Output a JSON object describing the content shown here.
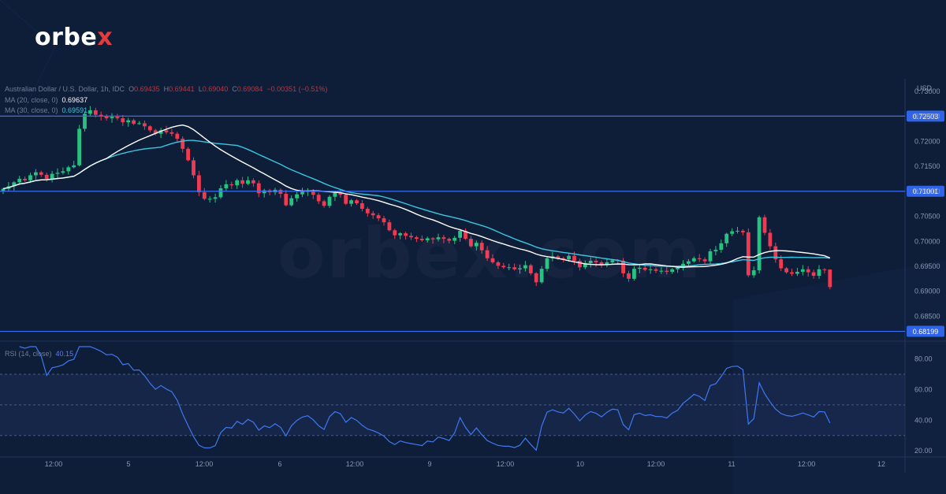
{
  "brand": {
    "logo_text": "orbe",
    "logo_x": "x"
  },
  "watermark": "orbex.com",
  "legend": {
    "symbol": "Australian Dollar / U.S. Dollar, 1h, IDC",
    "o_label": "O",
    "o": "0.69435",
    "h_label": "H",
    "h": "0.69441",
    "l_label": "L",
    "l": "0.69040",
    "c_label": "C",
    "c": "0.69084",
    "change": "−0.00351 (−0.51%)",
    "ma20_label": "MA (20, close, 0)",
    "ma20_value": "0.69637",
    "ma30_label": "MA (30, close, 0)",
    "ma30_value": "0.69591",
    "rsi_label": "RSI (14, close)",
    "rsi_value": "40.15"
  },
  "colors": {
    "background": "#0e1d38",
    "up": "#26c281",
    "down": "#ee3b52",
    "ma20": "#ffffff",
    "ma30": "#38c7e0",
    "rsi": "#3f78f0",
    "level": "#3a6ef5"
  },
  "chart_data": [
    {
      "type": "candlestick",
      "currency_label": "USD",
      "ylim": [
        0.6805,
        0.7325
      ],
      "y_ticks": [
        "0.73000",
        "0.72500",
        "0.72000",
        "0.71500",
        "0.71000",
        "0.70500",
        "0.70000",
        "0.69500",
        "0.69000",
        "0.68500"
      ],
      "x_ticks": [
        "12:00",
        "5",
        "12:00",
        "6",
        "12:00",
        "9",
        "12:00",
        "10",
        "12:00",
        "11",
        "12:00",
        "12"
      ],
      "levels": [
        {
          "value": 0.72503,
          "label": "0.72503"
        },
        {
          "value": 0.71001,
          "label": "0.71001"
        },
        {
          "value": 0.68199,
          "label": "0.68199"
        }
      ],
      "closes": [
        0.7105,
        0.711,
        0.7118,
        0.7125,
        0.7122,
        0.7132,
        0.7138,
        0.7133,
        0.7125,
        0.7135,
        0.7137,
        0.714,
        0.7148,
        0.7152,
        0.7225,
        0.7255,
        0.7262,
        0.7253,
        0.725,
        0.7246,
        0.7249,
        0.7246,
        0.7238,
        0.7242,
        0.7235,
        0.7236,
        0.723,
        0.7222,
        0.7215,
        0.7222,
        0.7218,
        0.7215,
        0.7205,
        0.7185,
        0.7162,
        0.7132,
        0.7098,
        0.7085,
        0.7085,
        0.7088,
        0.7106,
        0.7114,
        0.7112,
        0.7122,
        0.7115,
        0.7122,
        0.7116,
        0.7096,
        0.7102,
        0.7098,
        0.7103,
        0.7095,
        0.7072,
        0.7086,
        0.7094,
        0.7099,
        0.7101,
        0.7093,
        0.708,
        0.7071,
        0.7089,
        0.7097,
        0.7093,
        0.7075,
        0.7082,
        0.7076,
        0.7065,
        0.7056,
        0.7052,
        0.7046,
        0.7038,
        0.7022,
        0.7012,
        0.7016,
        0.7011,
        0.7008,
        0.7005,
        0.7002,
        0.7006,
        0.7004,
        0.7008,
        0.7005,
        0.7001,
        0.7007,
        0.7021,
        0.7005,
        0.699,
        0.6997,
        0.6982,
        0.6966,
        0.6958,
        0.6951,
        0.6948,
        0.6948,
        0.6944,
        0.6946,
        0.6952,
        0.6936,
        0.6918,
        0.6945,
        0.6966,
        0.697,
        0.6966,
        0.6964,
        0.6971,
        0.6961,
        0.6948,
        0.6956,
        0.6961,
        0.6958,
        0.6952,
        0.6958,
        0.6962,
        0.6961,
        0.6936,
        0.6925,
        0.6945,
        0.6947,
        0.6943,
        0.6944,
        0.6941,
        0.6941,
        0.6939,
        0.6944,
        0.6947,
        0.6955,
        0.696,
        0.6966,
        0.6964,
        0.696,
        0.698,
        0.6983,
        0.6996,
        0.7015,
        0.702,
        0.7021,
        0.7018,
        0.6932,
        0.6942,
        0.7048,
        0.7017,
        0.699,
        0.6964,
        0.6946,
        0.6938,
        0.6935,
        0.6939,
        0.6944,
        0.6938,
        0.6931,
        0.6944,
        0.6943,
        0.6908
      ],
      "last": {
        "open": 0.69435,
        "high": 0.69441,
        "low": 0.6904,
        "close": 0.69084
      }
    },
    {
      "type": "line",
      "name": "RSI (14, close)",
      "ylim": [
        17,
        88
      ],
      "y_ticks": [
        "80.00",
        "60.00",
        "40.00",
        "20.00"
      ],
      "bands": [
        70,
        50,
        30
      ],
      "last_value": 40.15
    }
  ]
}
